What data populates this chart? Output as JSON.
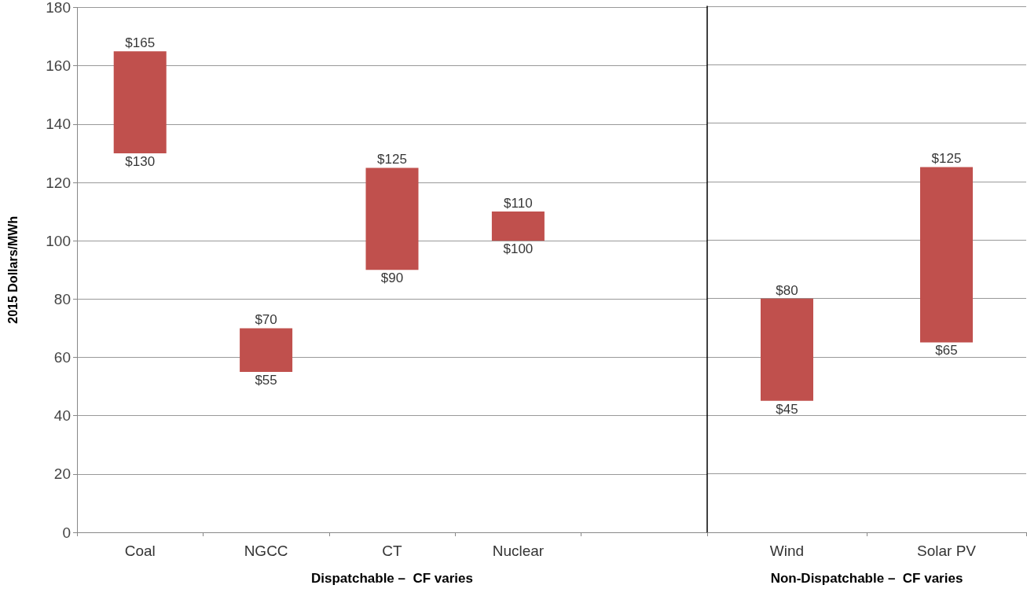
{
  "chart_data": [
    {
      "type": "bar",
      "ylabel": "2015 Dollars/MWh",
      "xlabel": "Dispatchable –  CF varies",
      "categories": [
        "Coal",
        "NGCC",
        "CT",
        "Nuclear",
        null
      ],
      "base": [
        130,
        55,
        90,
        100,
        null
      ],
      "values": [
        35,
        15,
        35,
        10,
        null
      ],
      "color": "#c0504d",
      "ylim": [
        0,
        180
      ],
      "yticks": [
        0,
        20,
        40,
        60,
        80,
        100,
        120,
        140,
        160,
        180
      ],
      "grid": "y",
      "annotations": [
        {
          "text": "$165",
          "x": "Coal",
          "y": 165
        },
        {
          "text": "$130",
          "x": "Coal",
          "y": 130
        },
        {
          "text": "$70",
          "x": "NGCC",
          "y": 70
        },
        {
          "text": "$55",
          "x": "NGCC",
          "y": 55
        },
        {
          "text": "$125",
          "x": "CT",
          "y": 125
        },
        {
          "text": "$90",
          "x": "CT",
          "y": 90
        },
        {
          "text": "$110",
          "x": "Nuclear",
          "y": 110
        },
        {
          "text": "$100",
          "x": "Nuclear",
          "y": 100
        }
      ]
    },
    {
      "type": "bar",
      "xlabel": "Non-Dispatchable –  CF varies",
      "categories": [
        "Wind",
        "Solar PV"
      ],
      "base": [
        45,
        65
      ],
      "values": [
        35,
        60
      ],
      "color": "#c0504d",
      "ylim": [
        0,
        180
      ],
      "yticks": [
        0,
        20,
        40,
        60,
        80,
        100,
        120,
        140,
        160,
        180
      ],
      "grid": "y",
      "tick_labels": "x",
      "annotations": [
        {
          "text": "$80",
          "x": "Wind",
          "y": 80
        },
        {
          "text": "$45",
          "x": "Wind",
          "y": 45
        },
        {
          "text": "$125",
          "x": "Solar PV",
          "y": 125
        },
        {
          "text": "$65",
          "x": "Solar PV",
          "y": 65
        }
      ]
    }
  ]
}
